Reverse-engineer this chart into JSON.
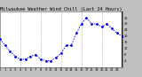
{
  "title": "Milwaukee Weather Wind Chill (Last 24 Hours)",
  "x_values": [
    0,
    1,
    2,
    3,
    4,
    5,
    6,
    7,
    8,
    9,
    10,
    11,
    12,
    13,
    14,
    15,
    16,
    17,
    18,
    19,
    20,
    21,
    22,
    23,
    24
  ],
  "y_values": [
    18,
    14,
    10,
    7,
    5,
    5,
    7,
    8,
    5,
    4,
    4,
    6,
    9,
    14,
    14,
    22,
    28,
    32,
    28,
    28,
    26,
    28,
    25,
    22,
    20
  ],
  "ylim": [
    0,
    36
  ],
  "xlim": [
    0,
    24
  ],
  "yticks": [
    4,
    8,
    12,
    16,
    20,
    24,
    28,
    32
  ],
  "ytick_labels": [
    "4",
    "8",
    "12",
    "16",
    "20",
    "24",
    "28",
    "32"
  ],
  "xticks": [
    0,
    1,
    2,
    3,
    4,
    5,
    6,
    7,
    8,
    9,
    10,
    11,
    12,
    13,
    14,
    15,
    16,
    17,
    18,
    19,
    20,
    21,
    22,
    23
  ],
  "xtick_labels": [
    "0",
    "1",
    "2",
    "3",
    "4",
    "5",
    "6",
    "7",
    "8",
    "9",
    "10",
    "11",
    "12",
    "13",
    "14",
    "15",
    "16",
    "17",
    "18",
    "19",
    "20",
    "21",
    "22",
    "23"
  ],
  "line_color": "#0000dd",
  "dot_color": "#0000dd",
  "bg_color": "#c0c0c0",
  "plot_bg_color": "#ffffff",
  "grid_color": "#888888",
  "vline_positions": [
    4,
    8,
    12,
    16,
    20
  ],
  "title_fontsize": 3.8,
  "tick_fontsize": 2.5,
  "right_bar_color": "#000000",
  "right_bar_x": 24
}
